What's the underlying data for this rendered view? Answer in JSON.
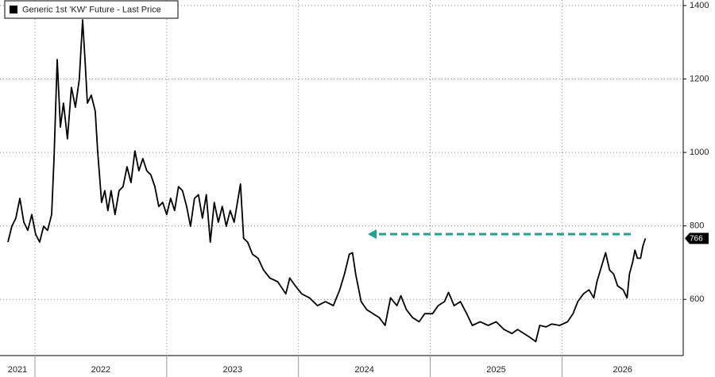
{
  "chart_data": {
    "type": "line",
    "legend": "Generic 1st 'KW' Future - Last Price",
    "color": "#000000",
    "series": [
      {
        "name": "Generic 1st 'KW' Future - Last Price",
        "color": "#000000",
        "x": [
          2021.795,
          2021.825,
          2021.855,
          2021.886,
          2021.916,
          2021.946,
          2021.976,
          2022.006,
          2022.036,
          2022.066,
          2022.096,
          2022.127,
          2022.145,
          2022.169,
          2022.193,
          2022.217,
          2022.247,
          2022.277,
          2022.307,
          2022.337,
          2022.362,
          2022.38,
          2022.398,
          2022.428,
          2022.458,
          2022.476,
          2022.506,
          2022.53,
          2022.554,
          2022.578,
          2022.608,
          2022.639,
          2022.669,
          2022.699,
          2022.729,
          2022.759,
          2022.789,
          2022.819,
          2022.849,
          2022.88,
          2022.91,
          2022.94,
          2022.97,
          2023.0,
          2023.03,
          2023.06,
          2023.09,
          2023.12,
          2023.151,
          2023.181,
          2023.211,
          2023.241,
          2023.271,
          2023.301,
          2023.331,
          2023.361,
          2023.392,
          2023.422,
          2023.452,
          2023.482,
          2023.512,
          2023.542,
          2023.56,
          2023.584,
          2023.614,
          2023.651,
          2023.693,
          2023.735,
          2023.783,
          2023.843,
          2023.904,
          2023.934,
          2023.976,
          2024.024,
          2024.084,
          2024.145,
          2024.205,
          2024.265,
          2024.313,
          2024.349,
          2024.386,
          2024.41,
          2024.434,
          2024.476,
          2024.518,
          2024.566,
          2024.614,
          2024.657,
          2024.699,
          2024.747,
          2024.777,
          2024.819,
          2024.867,
          2024.916,
          2024.958,
          2025.018,
          2025.06,
          2025.108,
          2025.139,
          2025.181,
          2025.229,
          2025.277,
          2025.319,
          2025.379,
          2025.44,
          2025.5,
          2025.56,
          2025.62,
          2025.663,
          2025.711,
          2025.759,
          2025.801,
          2025.831,
          2025.879,
          2025.922,
          2025.982,
          2026.042,
          2026.084,
          2026.12,
          2026.163,
          2026.205,
          2026.241,
          2026.265,
          2026.301,
          2026.331,
          2026.361,
          2026.392,
          2026.422,
          2026.464,
          2026.494,
          2026.512,
          2026.536,
          2026.554,
          2026.572,
          2026.596,
          2026.614,
          2026.633
        ],
        "values": [
          756,
          799,
          821,
          875,
          810,
          788,
          831,
          777,
          756,
          799,
          788,
          831,
          983,
          1253,
          1069,
          1134,
          1037,
          1177,
          1123,
          1199,
          1361,
          1253,
          1134,
          1156,
          1112,
          1004,
          864,
          896,
          842,
          896,
          831,
          896,
          907,
          961,
          918,
          1004,
          950,
          983,
          950,
          939,
          907,
          853,
          864,
          831,
          875,
          842,
          907,
          896,
          853,
          799,
          875,
          885,
          821,
          885,
          756,
          864,
          810,
          853,
          799,
          842,
          810,
          875,
          914,
          766,
          756,
          723,
          712,
          680,
          658,
          648,
          615,
          658,
          637,
          615,
          604,
          583,
          594,
          583,
          626,
          669,
          723,
          727,
          669,
          594,
          572,
          561,
          550,
          529,
          604,
          583,
          610,
          572,
          550,
          539,
          561,
          561,
          583,
          594,
          619,
          583,
          594,
          561,
          529,
          539,
          529,
          539,
          518,
          507,
          518,
          507,
          496,
          485,
          529,
          525,
          533,
          529,
          539,
          561,
          594,
          615,
          626,
          604,
          648,
          691,
          727,
          680,
          669,
          637,
          626,
          604,
          669,
          701,
          734,
          712,
          712,
          745,
          766
        ]
      }
    ],
    "last_price": 766,
    "xlim": [
      2021.735,
      2026.92
    ],
    "xticks": [
      2021,
      2022,
      2023,
      2024,
      2025,
      2026
    ],
    "ylim": [
      447,
      1415
    ],
    "yticks": [
      600,
      800,
      1000,
      1200,
      1400
    ],
    "grid": true
  }
}
